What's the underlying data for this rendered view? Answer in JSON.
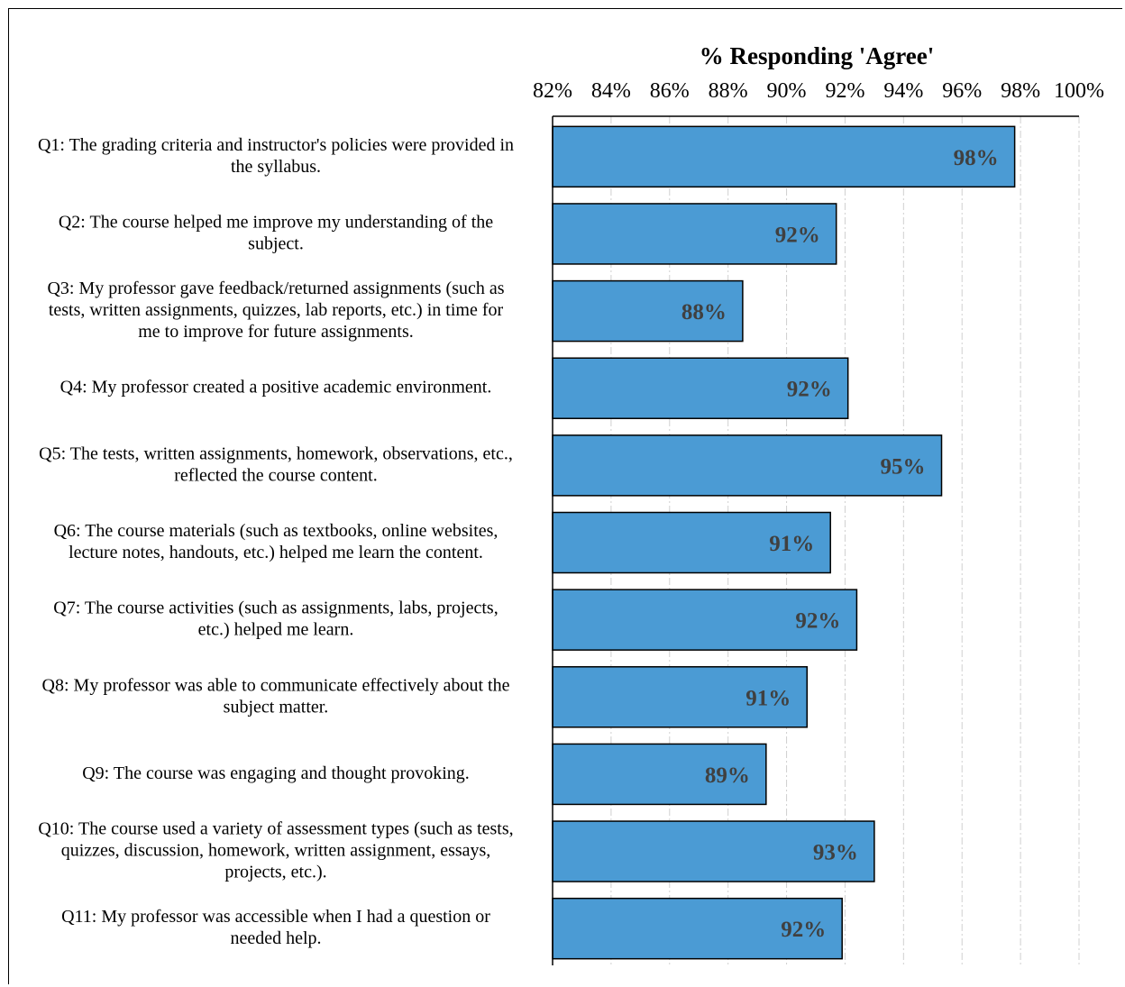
{
  "chart_data": {
    "type": "bar",
    "orientation": "horizontal",
    "title": "% Responding 'Agree'",
    "xlim": [
      82,
      100
    ],
    "ticks": [
      82,
      84,
      86,
      88,
      90,
      92,
      94,
      96,
      98,
      100
    ],
    "tick_labels": [
      "82%",
      "84%",
      "86%",
      "88%",
      "90%",
      "92%",
      "94%",
      "96%",
      "98%",
      "100%"
    ],
    "categories": [
      [
        "Q1: The grading criteria and instructor's policies were provided in",
        "the syllabus."
      ],
      [
        "Q2:  The course helped me improve my understanding of the",
        "subject."
      ],
      [
        "Q3:  My professor gave feedback/returned assignments (such as",
        "tests, written assignments, quizzes, lab reports, etc.) in time for",
        "me to improve for future assignments."
      ],
      [
        "Q4:  My professor created a positive academic environment."
      ],
      [
        "Q5:  The tests, written assignments, homework, observations, etc.,",
        "reflected the course content."
      ],
      [
        "Q6:  The course materials (such as textbooks, online websites,",
        "lecture notes, handouts, etc.) helped me learn the content."
      ],
      [
        "Q7:  The course activities (such as assignments, labs, projects,",
        "etc.) helped me learn."
      ],
      [
        "Q8:  My professor was able to communicate effectively about the",
        "subject matter."
      ],
      [
        "Q9:  The course was engaging and thought provoking."
      ],
      [
        "Q10: The course used a variety of assessment types (such as tests,",
        "quizzes, discussion, homework, written assignment, essays,",
        "projects, etc.)."
      ],
      [
        "Q11:  My professor was accessible when I had a question or",
        "needed help."
      ]
    ],
    "values": [
      97.8,
      91.7,
      88.5,
      92.1,
      95.3,
      91.5,
      92.4,
      90.7,
      89.3,
      93.0,
      91.9
    ],
    "data_labels": [
      "98%",
      "92%",
      "88%",
      "92%",
      "95%",
      "91%",
      "92%",
      "91%",
      "89%",
      "93%",
      "92%"
    ],
    "grid": "vertical dashed",
    "legend": "none",
    "bar_color": "#4b9bd4",
    "bar_edge_color": "#000000",
    "label_color": "#404040"
  }
}
